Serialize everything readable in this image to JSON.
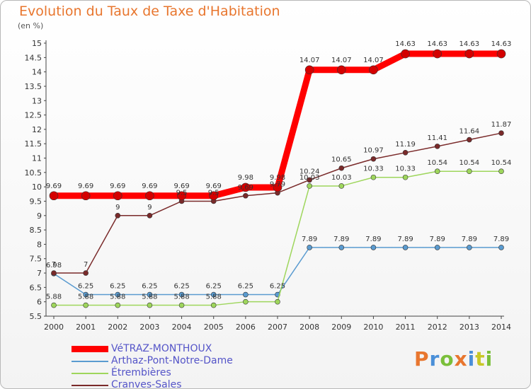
{
  "header": {
    "title": "Evolution du Taux de Taxe d'Habitation",
    "subtitle": "(en %)"
  },
  "brand": {
    "name": "Proxiti",
    "colors": [
      "#e8762e",
      "#4a8fd8",
      "#7abf3a",
      "#e8762e",
      "#4a8fd8",
      "#c8c828",
      "#7abf3a"
    ]
  },
  "chart_data": {
    "type": "line",
    "x": [
      "2000",
      "2001",
      "2002",
      "2003",
      "2004",
      "2005",
      "2006",
      "2007",
      "2008",
      "2009",
      "2010",
      "2011",
      "2012",
      "2013",
      "2014"
    ],
    "y_ticks": [
      "5.5",
      "6",
      "6.5",
      "7",
      "7.5",
      "8",
      "8.5",
      "9",
      "9.5",
      "10",
      "10.5",
      "11",
      "11.5",
      "12",
      "12.5",
      "13",
      "13.5",
      "14",
      "14.5",
      "15"
    ],
    "ylim": [
      5.5,
      15
    ],
    "grid": false,
    "legend_position": "bottom-left",
    "series": [
      {
        "name": "VéTRAZ-MONTHOUX",
        "color": "#ff0000",
        "values": [
          9.69,
          9.69,
          9.69,
          9.69,
          9.69,
          9.69,
          9.98,
          9.98,
          14.07,
          14.07,
          14.07,
          14.63,
          14.63,
          14.63,
          14.63
        ],
        "labels": [
          "9.69",
          "9.69",
          "9.69",
          "9.69",
          "9.69",
          "9.69",
          "9.98",
          "9.98",
          "14.07",
          "14.07",
          "14.07",
          "14.63",
          "14.63",
          "14.63",
          "14.63"
        ]
      },
      {
        "name": "Arthaz-Pont-Notre-Dame",
        "color": "#5a9bd0",
        "values": [
          6.98,
          6.25,
          6.25,
          6.25,
          6.25,
          6.25,
          6.25,
          6.25,
          7.89,
          7.89,
          7.89,
          7.89,
          7.89,
          7.89,
          7.89
        ],
        "labels": [
          "6.98",
          "6.25",
          "6.25",
          "6.25",
          "6.25",
          "6.25",
          "6.25",
          "6.25",
          "7.89",
          "7.89",
          "7.89",
          "7.89",
          "7.89",
          "7.89",
          "7.89"
        ]
      },
      {
        "name": "Étrembières",
        "color": "#9ed65c",
        "values": [
          5.88,
          5.88,
          5.88,
          5.88,
          5.88,
          5.88,
          6.0,
          6.0,
          10.03,
          10.03,
          10.33,
          10.33,
          10.54,
          10.54,
          10.54
        ],
        "labels": [
          "5.88",
          "5.88",
          "5.88",
          "5.88",
          "5.88",
          "5.88",
          "",
          "",
          "10.03",
          "10.03",
          "10.33",
          "10.33",
          "10.54",
          "10.54",
          "10.54"
        ]
      },
      {
        "name": "Cranves-Sales",
        "color": "#7a2a2a",
        "values": [
          7,
          7,
          9,
          9,
          9.5,
          9.5,
          9.69,
          9.79,
          10.24,
          10.65,
          10.97,
          11.19,
          11.41,
          11.64,
          11.87
        ],
        "labels": [
          "7",
          "7",
          "9",
          "9",
          "9.5",
          "9.5",
          "9.69",
          "9.79",
          "10.24",
          "10.65",
          "10.97",
          "11.19",
          "11.41",
          "11.64",
          "11.87"
        ]
      }
    ]
  }
}
